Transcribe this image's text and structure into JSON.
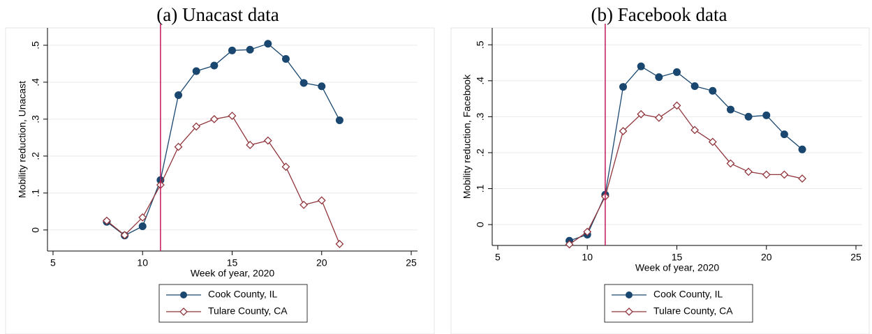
{
  "chart_data": [
    {
      "type": "line",
      "title": "(a) Unacast data",
      "xlabel": "Week of year, 2020",
      "ylabel": "Mobility reduction, Unacast",
      "x": [
        8,
        9,
        10,
        11,
        12,
        13,
        14,
        15,
        16,
        17,
        18,
        19,
        20,
        21
      ],
      "series": [
        {
          "name": "Cook County, IL",
          "color": "#1a476f",
          "marker": "circle",
          "values": [
            0.022,
            -0.015,
            0.01,
            0.135,
            0.365,
            0.43,
            0.445,
            0.486,
            0.488,
            0.504,
            0.463,
            0.398,
            0.389,
            0.297
          ]
        },
        {
          "name": "Tulare County, CA",
          "color": "#90353b",
          "marker": "diamond",
          "values": [
            0.025,
            -0.014,
            0.034,
            0.122,
            0.225,
            0.28,
            0.3,
            0.309,
            0.23,
            0.242,
            0.171,
            0.068,
            0.08,
            -0.038
          ]
        }
      ],
      "vline": 11,
      "vline_color": "#c0185a",
      "xlim": [
        4.69,
        25.35
      ],
      "xticks": [
        5,
        10,
        15,
        20,
        25
      ],
      "ylim": [
        -0.057,
        0.547
      ],
      "yticks": [
        0,
        {
          "value": 0.1,
          "label": ".1"
        },
        {
          "value": 0.2,
          "label": ".2"
        },
        {
          "value": 0.3,
          "label": ".3"
        },
        {
          "value": 0.4,
          "label": ".4"
        },
        {
          "value": 0.5,
          "label": ".5"
        }
      ],
      "grid": true
    },
    {
      "type": "line",
      "title": "(b) Facebook data",
      "xlabel": "Week of year, 2020",
      "ylabel": "Mobility reduction, Facebook",
      "x": [
        9,
        10,
        11,
        12,
        13,
        14,
        15,
        16,
        17,
        18,
        19,
        20,
        21,
        22
      ],
      "series": [
        {
          "name": "Cook County, IL",
          "color": "#1a476f",
          "marker": "circle",
          "values": [
            -0.045,
            -0.028,
            0.083,
            0.383,
            0.44,
            0.41,
            0.424,
            0.385,
            0.372,
            0.32,
            0.3,
            0.304,
            0.251,
            0.209
          ]
        },
        {
          "name": "Tulare County, CA",
          "color": "#90353b",
          "marker": "diamond",
          "values": [
            -0.055,
            -0.02,
            0.078,
            0.26,
            0.307,
            0.297,
            0.331,
            0.263,
            0.23,
            0.17,
            0.147,
            0.139,
            0.139,
            0.128
          ]
        }
      ],
      "vline": 11,
      "vline_color": "#c0185a",
      "xlim": [
        4.69,
        25.35
      ],
      "xticks": [
        5,
        10,
        15,
        20,
        25
      ],
      "ylim": [
        -0.058,
        0.547
      ],
      "yticks": [
        0,
        {
          "value": 0.1,
          "label": ".1"
        },
        {
          "value": 0.2,
          "label": ".2"
        },
        {
          "value": 0.3,
          "label": ".3"
        },
        {
          "value": 0.4,
          "label": ".4"
        },
        {
          "value": 0.5,
          "label": ".5"
        }
      ],
      "grid": true
    }
  ]
}
